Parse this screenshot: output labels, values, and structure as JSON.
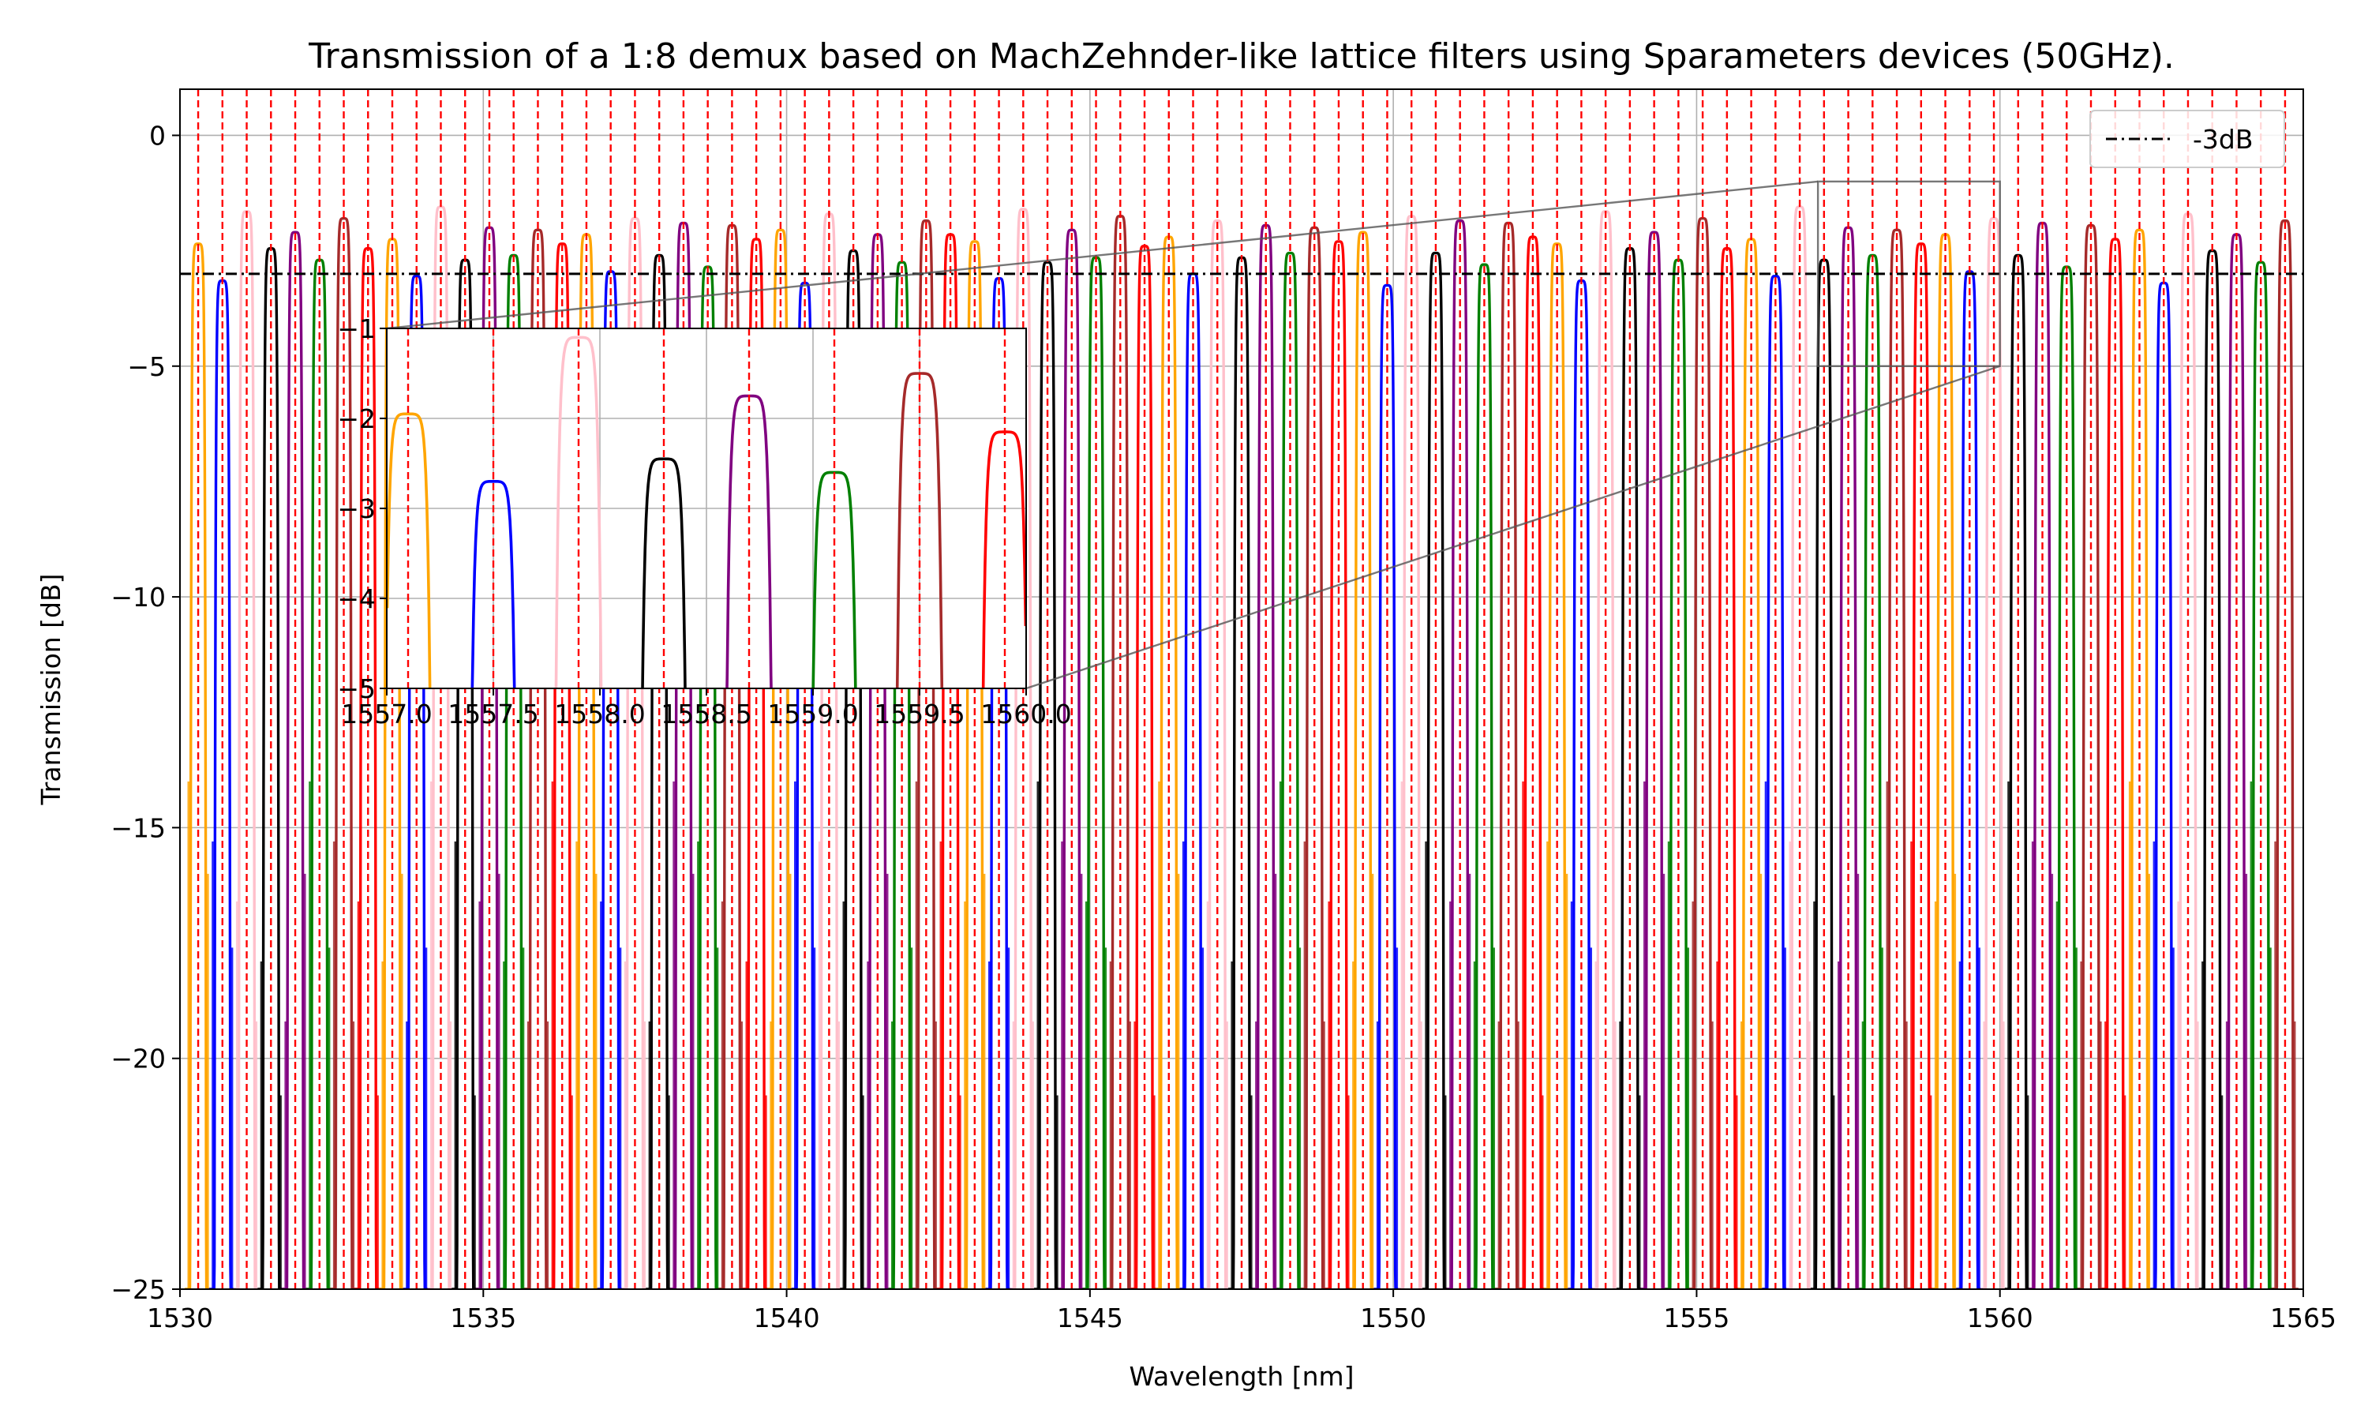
{
  "chart_data": {
    "type": "line",
    "title": "Transmission of a 1:8 demux based on MachZehnder-like lattice filters using Sparameters devices (50GHz).",
    "xlabel": "Wavelength [nm]",
    "ylabel": "Transmission [dB]",
    "xlim": [
      1530,
      1565
    ],
    "ylim": [
      -25,
      1
    ],
    "xticks": [
      1530,
      1535,
      1540,
      1545,
      1550,
      1555,
      1560,
      1565
    ],
    "xtick_labels": [
      "1530",
      "1535",
      "1540",
      "1545",
      "1550",
      "1555",
      "1560",
      "1565"
    ],
    "yticks": [
      0,
      -5,
      -10,
      -15,
      -20,
      -25
    ],
    "ytick_labels": [
      "0",
      "−5",
      "−10",
      "−15",
      "−20",
      "−25"
    ],
    "grid": true,
    "legend": {
      "placement": "top-right",
      "entries": [
        {
          "label": "-3dB",
          "color": "#000000",
          "style": "dash-dot"
        }
      ]
    },
    "reference_line": {
      "y": -3,
      "label": "-3dB",
      "color": "#000000",
      "style": "dash-dot"
    },
    "channel_spacing_nm": 0.4,
    "channel_marker_color": "#ff0000",
    "channel_start_nm": 1530.3,
    "channel_count": 87,
    "series_colors": [
      "#ffa500",
      "#0000ff",
      "#ffc0cb",
      "#000000",
      "#800080",
      "#008000",
      "#a52a2a",
      "#ff0000"
    ],
    "peak_levels_db": [
      -2.2,
      -3.1,
      -1.7,
      -2.6,
      -2.0,
      -2.7,
      -1.9,
      -2.3
    ],
    "peak_halfwidth_nm": 0.1,
    "sidelobe_floor_db": -25,
    "inset": {
      "xlim": [
        1557,
        1560
      ],
      "ylim": [
        -5,
        -1
      ],
      "xticks": [
        1557.0,
        1557.5,
        1558.0,
        1558.5,
        1559.0,
        1559.5,
        1560.0
      ],
      "xtick_labels": [
        "1557.0",
        "1557.5",
        "1558.0",
        "1558.5",
        "1559.0",
        "1559.5",
        "1560.0"
      ],
      "yticks": [
        -1,
        -2,
        -3,
        -4,
        -5
      ],
      "ytick_labels": [
        "−1",
        "−2",
        "−3",
        "−4",
        "−5"
      ],
      "peaks": [
        {
          "center": 1557.1,
          "peak": -1.95,
          "color": "#ffa500"
        },
        {
          "center": 1557.5,
          "peak": -2.7,
          "color": "#0000ff"
        },
        {
          "center": 1557.9,
          "peak": -1.1,
          "color": "#ffc0cb"
        },
        {
          "center": 1558.3,
          "peak": -2.45,
          "color": "#000000"
        },
        {
          "center": 1558.7,
          "peak": -1.75,
          "color": "#800080"
        },
        {
          "center": 1559.1,
          "peak": -2.6,
          "color": "#008000"
        },
        {
          "center": 1559.5,
          "peak": -1.5,
          "color": "#a52a2a"
        },
        {
          "center": 1559.9,
          "peak": -2.15,
          "color": "#ff0000"
        }
      ]
    }
  }
}
